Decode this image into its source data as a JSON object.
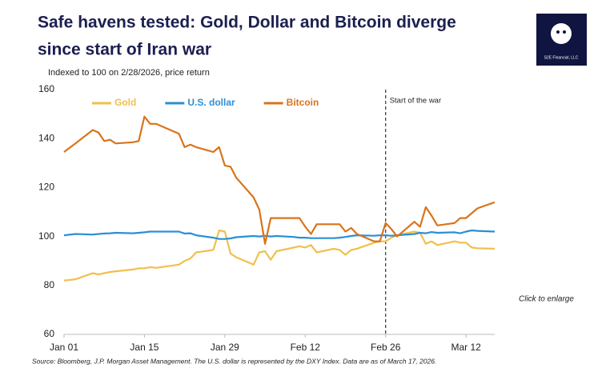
{
  "chart_data": {
    "type": "line",
    "title": [
      "Safe havens tested: Gold, Dollar and Bitcoin diverge",
      "since start of Iran war"
    ],
    "subtitle": "Indexed to 100 on 2/28/2026, price return",
    "source": "Source: Bloomberg, J.P. Morgan Asset Management.   The U.S. dollar is represented by the DXY Index. Data are as of March 17, 2026.",
    "note": "Click to enlarge",
    "logo": "S2E Financial, LLC",
    "x": [
      0,
      2,
      5,
      6,
      7,
      8,
      9,
      12,
      13,
      14,
      15,
      16,
      20,
      21,
      22,
      23,
      26,
      27,
      28,
      29,
      30,
      33,
      34,
      35,
      36,
      37,
      40,
      41,
      42,
      43,
      44,
      47,
      48,
      49,
      50,
      51,
      54,
      55,
      56,
      57,
      58,
      61,
      62,
      63,
      64,
      65,
      68,
      69,
      70,
      71,
      72,
      75
    ],
    "xlim": [
      0,
      75
    ],
    "xticks": [
      {
        "value": 0,
        "label": "Jan 01"
      },
      {
        "value": 14,
        "label": "Jan 15"
      },
      {
        "value": 28,
        "label": "Jan 29"
      },
      {
        "value": 42,
        "label": "Feb 12"
      },
      {
        "value": 56,
        "label": "Feb 26"
      },
      {
        "value": 70,
        "label": "Mar 12"
      }
    ],
    "ylim": [
      60,
      160
    ],
    "yticks": [
      60,
      80,
      100,
      120,
      140,
      160
    ],
    "vline": {
      "x": 56,
      "label": "Start of the war"
    },
    "legend": "top-left",
    "series": [
      {
        "name": "Gold",
        "color": "#f0c04c",
        "values": [
          82,
          82.5,
          85,
          84.5,
          85,
          85.5,
          85.8,
          86.5,
          87,
          87,
          87.5,
          87.2,
          88.5,
          90,
          91,
          93.5,
          94.5,
          102.5,
          102,
          93,
          91.5,
          88.5,
          93.5,
          94,
          90.5,
          94,
          95.5,
          96,
          95.5,
          96.5,
          93.5,
          95,
          94.5,
          92.5,
          94.5,
          95,
          97.5,
          98,
          98,
          99.5,
          100.5,
          102,
          101.5,
          97,
          98,
          96.5,
          98,
          97.5,
          97.5,
          95.5,
          95.2,
          95
        ]
      },
      {
        "name": "U.S. dollar",
        "color": "#2b8fd6",
        "values": [
          100.5,
          101,
          100.8,
          101,
          101.2,
          101.3,
          101.5,
          101.3,
          101.5,
          101.7,
          102,
          102,
          102,
          101.2,
          101.3,
          100.5,
          99.5,
          99,
          99,
          99.2,
          99.7,
          100.2,
          100,
          100.3,
          100,
          100.2,
          99.8,
          99.5,
          99.5,
          99.3,
          99.3,
          99.3,
          99.5,
          99.8,
          100.2,
          100.5,
          100.3,
          100.5,
          100.5,
          100.3,
          100.5,
          101,
          101.5,
          101.3,
          101.8,
          101.5,
          101.7,
          101.3,
          102,
          102.5,
          102.3,
          102
        ]
      },
      {
        "name": "Bitcoin",
        "color": "#d8741c",
        "values": [
          134.5,
          138,
          143.5,
          142.5,
          139,
          139.5,
          138,
          138.5,
          139,
          149,
          146,
          146,
          142,
          136.5,
          137.5,
          136.5,
          134.5,
          136.5,
          129,
          128.5,
          124,
          116,
          111,
          97,
          107.5,
          107.5,
          107.5,
          107.5,
          104,
          101,
          105,
          105,
          105,
          102,
          103.5,
          101,
          98,
          98,
          105.5,
          103,
          100,
          106,
          104,
          112,
          108.5,
          104.5,
          105.5,
          107.5,
          107.5,
          109.5,
          111.5,
          114
        ]
      }
    ]
  }
}
